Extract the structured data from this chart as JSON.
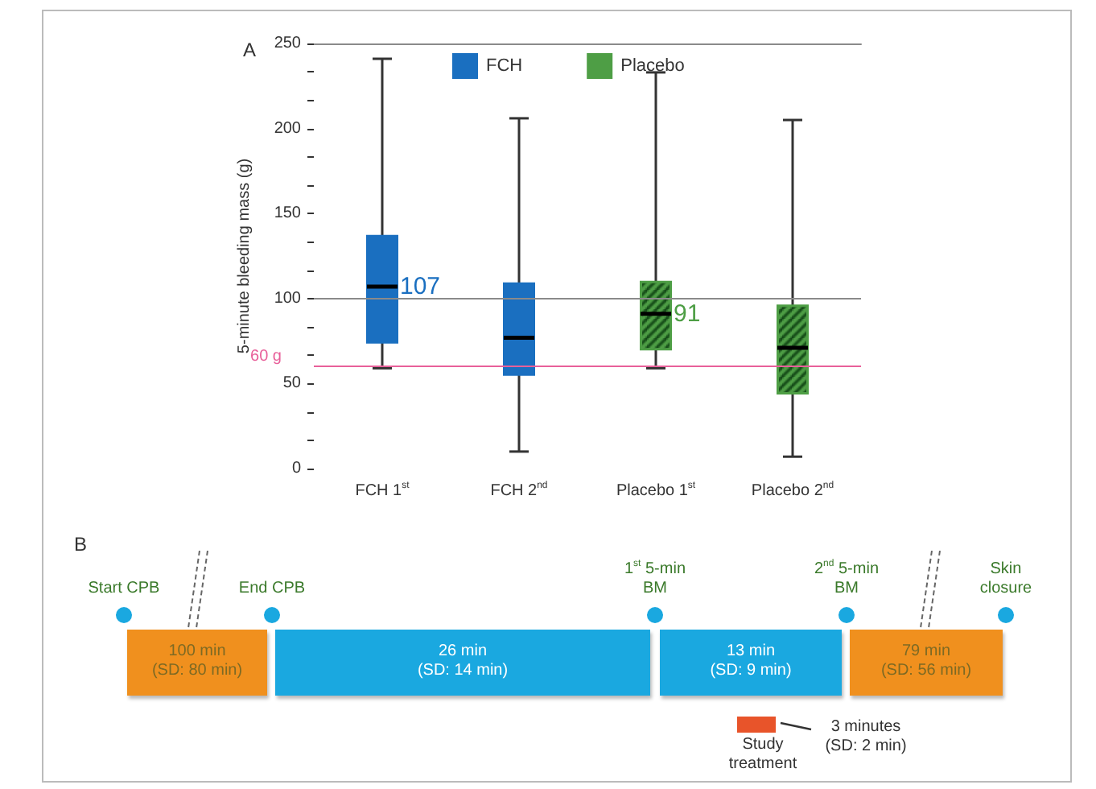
{
  "chart_data": [
    {
      "type": "box",
      "title": "A",
      "categories": [
        "FCH 1$^{st}$",
        "FCH 2$^{nd}$",
        "Placebo 1$^{st}$",
        "Placebo 2$^{nd}$"
      ],
      "ylabel": "5-minute bleeding mass (g)",
      "ylim": [
        0,
        250
      ],
      "yticks": [
        0,
        {
          "value": 16.7,
          "label": null
        },
        {
          "value": 33.3,
          "label": null
        },
        50,
        {
          "value": 66.7,
          "label": null
        },
        {
          "value": 83.3,
          "label": null
        },
        100,
        {
          "value": 116.7,
          "label": null
        },
        {
          "value": 133.3,
          "label": null
        },
        150,
        {
          "value": 166.7,
          "label": null
        },
        {
          "value": 183.3,
          "label": null
        },
        200,
        {
          "value": 216.7,
          "label": null
        },
        {
          "value": 233.3,
          "label": null
        },
        250
      ],
      "legend": "top",
      "series": [
        {
          "name": "FCH",
          "color": "#1a6fc0",
          "boxes": [
            {
              "low": 59,
              "q1": 74,
              "median": 107,
              "q3": 137,
              "high": 241
            },
            {
              "low": 10,
              "q1": 55,
              "median": 77,
              "q3": 109,
              "high": 206
            },
            null,
            null
          ]
        },
        {
          "name": "Placebo",
          "color": "#4e9e45",
          "boxes": [
            null,
            null,
            {
              "low": 59,
              "q1": 70,
              "median": 91,
              "q3": 110,
              "high": 233
            },
            {
              "low": 7,
              "q1": 44,
              "median": 71,
              "q3": 96,
              "high": 205
            }
          ]
        }
      ],
      "ref_lines": [
        {
          "axis": "y",
          "value": 60,
          "label": "60 g",
          "color": "#e8609a"
        },
        {
          "axis": "y",
          "value": 100,
          "color": "#8a8a8a"
        }
      ],
      "annotations": [
        {
          "text": "107",
          "x": "FCH 1$^{st}$",
          "y": 107
        },
        {
          "text": "91",
          "x": "Placebo 1$^{st}$",
          "y": 91
        }
      ]
    },
    {
      "type": "other",
      "title": "B",
      "categories": [
        "Start CPB",
        "End CPB",
        "1$^{st}$ 5-min\nBM",
        "2$^{nd}$ 5-min\nBM",
        "Skin\nclosure"
      ],
      "annotations": [
        "100 min\n(SD: 80 min)",
        "26 min\n(SD: 14 min)",
        "13 min\n(SD: 9 min)",
        "79 min\n(SD: 56 min)",
        "Study\ntreatment",
        "3 minutes\n(SD: 2 min)"
      ]
    }
  ]
}
